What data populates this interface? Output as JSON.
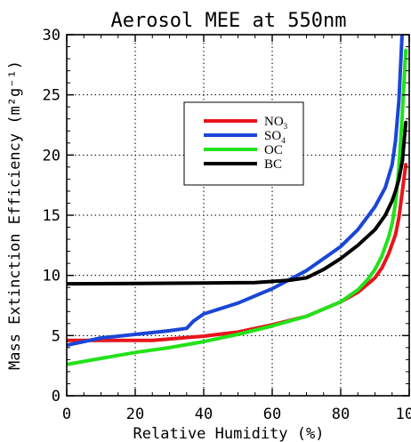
{
  "chart_data": {
    "type": "line",
    "title": "Aerosol MEE at 550nm",
    "xlabel": "Relative Humidity (%)",
    "ylabel": "Mass Extinction Efficiency (m²g⁻¹)",
    "xlim": [
      0,
      100
    ],
    "ylim": [
      0,
      30
    ],
    "xticks": [
      0,
      20,
      40,
      60,
      80,
      100
    ],
    "yticks": [
      0,
      5,
      10,
      15,
      20,
      25,
      30
    ],
    "grid": true,
    "legend_position": "upper-center",
    "series": [
      {
        "name": "NO3",
        "color": "#e8141c",
        "x": [
          0,
          10,
          25,
          40,
          50,
          60,
          70,
          80,
          85,
          88,
          90,
          92,
          94,
          96,
          97,
          98,
          99
        ],
        "y": [
          4.6,
          4.6,
          4.6,
          4.95,
          5.3,
          5.9,
          6.6,
          7.8,
          8.6,
          9.3,
          9.8,
          10.6,
          11.8,
          13.4,
          14.8,
          17.0,
          19.2
        ]
      },
      {
        "name": "SO4",
        "color": "#1a46d6",
        "x": [
          0,
          10,
          20,
          30,
          35,
          37,
          40,
          50,
          60,
          70,
          80,
          85,
          90,
          93,
          95,
          96,
          97,
          98
        ],
        "y": [
          4.2,
          4.8,
          5.1,
          5.4,
          5.6,
          6.2,
          6.8,
          7.7,
          8.9,
          10.4,
          12.4,
          13.8,
          15.7,
          17.3,
          19.2,
          21.2,
          24.5,
          30.5
        ]
      },
      {
        "name": "OC",
        "color": "#22e21a",
        "x": [
          0,
          10,
          20,
          30,
          40,
          50,
          60,
          70,
          80,
          85,
          88,
          90,
          92,
          94,
          95,
          96,
          97,
          98,
          99
        ],
        "y": [
          2.6,
          3.1,
          3.6,
          4.0,
          4.5,
          5.1,
          5.8,
          6.6,
          7.8,
          8.8,
          9.7,
          10.5,
          11.6,
          13.2,
          14.3,
          16.0,
          19.0,
          23.5,
          28.7
        ]
      },
      {
        "name": "BC",
        "color": "#000000",
        "x": [
          0,
          20,
          40,
          55,
          65,
          70,
          75,
          80,
          85,
          90,
          93,
          95,
          96,
          97,
          98,
          99
        ],
        "y": [
          9.3,
          9.33,
          9.37,
          9.4,
          9.6,
          9.8,
          10.5,
          11.4,
          12.5,
          13.8,
          15.0,
          16.2,
          17.0,
          18.0,
          19.5,
          22.7
        ]
      }
    ]
  }
}
